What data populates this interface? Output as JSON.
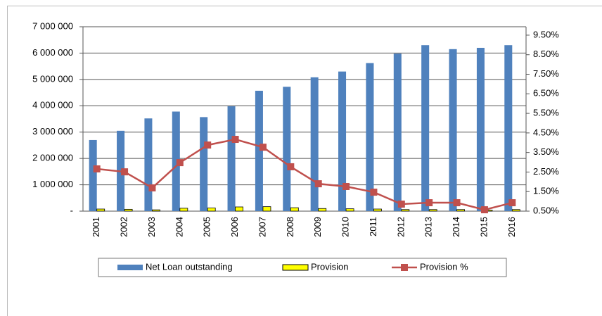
{
  "chart_data": {
    "type": "bar-line",
    "categories": [
      "2001",
      "2002",
      "2003",
      "2004",
      "2005",
      "2006",
      "2007",
      "2008",
      "2009",
      "2010",
      "2011",
      "2012",
      "2013",
      "2014",
      "2015",
      "2016"
    ],
    "series": [
      {
        "name": "Net Loan outstanding",
        "color": "#4f81bd",
        "type": "bar",
        "values": [
          2700000,
          3050000,
          3520000,
          3780000,
          3570000,
          3980000,
          4570000,
          4720000,
          5080000,
          5300000,
          5620000,
          5980000,
          6300000,
          6150000,
          6200000,
          6300000
        ]
      },
      {
        "name": "Provision",
        "color": "#ffff00",
        "type": "bar",
        "values": [
          80000,
          70000,
          50000,
          110000,
          120000,
          160000,
          170000,
          130000,
          100000,
          90000,
          80000,
          60000,
          60000,
          60000,
          40000,
          60000
        ]
      },
      {
        "name": "Provision %",
        "color": "#c0504d",
        "type": "line",
        "axis": "y2",
        "values": [
          2.66,
          2.51,
          1.69,
          2.98,
          3.88,
          4.17,
          3.77,
          2.77,
          1.9,
          1.76,
          1.47,
          0.86,
          0.93,
          0.93,
          0.57,
          0.93
        ]
      }
    ],
    "ylim": [
      0,
      7000000
    ],
    "yticks": [
      {
        "value": 0,
        "label": "-"
      },
      {
        "value": 1000000,
        "label": "1 000 000"
      },
      {
        "value": 2000000,
        "label": "2 000 000"
      },
      {
        "value": 3000000,
        "label": "3 000 000"
      },
      {
        "value": 4000000,
        "label": "4 000 000"
      },
      {
        "value": 5000000,
        "label": "5 000 000"
      },
      {
        "value": 6000000,
        "label": "6 000 000"
      },
      {
        "value": 7000000,
        "label": "7 000 000"
      }
    ],
    "y2lim": [
      0.5,
      9.93
    ],
    "y2ticks": [
      {
        "value": 0.5,
        "label": "0.50%"
      },
      {
        "value": 1.5,
        "label": "1.50%"
      },
      {
        "value": 2.5,
        "label": "2.50%"
      },
      {
        "value": 3.5,
        "label": "3.50%"
      },
      {
        "value": 4.5,
        "label": "4.50%"
      },
      {
        "value": 5.5,
        "label": "5.50%"
      },
      {
        "value": 6.5,
        "label": "6.50%"
      },
      {
        "value": 7.5,
        "label": "7.50%"
      },
      {
        "value": 8.5,
        "label": "8.50%"
      },
      {
        "value": 9.5,
        "label": "9.50%"
      }
    ],
    "grid": true
  }
}
